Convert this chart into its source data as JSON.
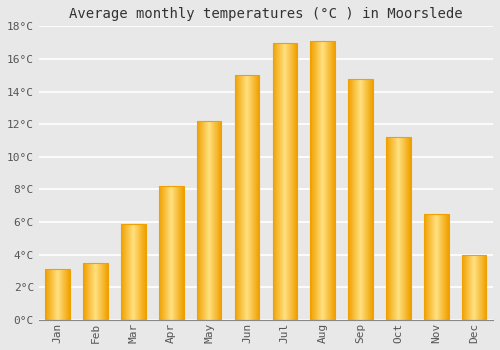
{
  "title": "Average monthly temperatures (°C ) in Moorslede",
  "months": [
    "Jan",
    "Feb",
    "Mar",
    "Apr",
    "May",
    "Jun",
    "Jul",
    "Aug",
    "Sep",
    "Oct",
    "Nov",
    "Dec"
  ],
  "temperatures": [
    3.1,
    3.5,
    5.9,
    8.2,
    12.2,
    15.0,
    17.0,
    17.1,
    14.8,
    11.2,
    6.5,
    4.0
  ],
  "bar_color_center": "#FFE080",
  "bar_color_edge": "#F0A000",
  "ylim": [
    0,
    18
  ],
  "yticks": [
    0,
    2,
    4,
    6,
    8,
    10,
    12,
    14,
    16,
    18
  ],
  "background_color": "#e8e8e8",
  "plot_bg_color": "#e8e8e8",
  "grid_color": "#ffffff",
  "title_fontsize": 10,
  "tick_fontsize": 8,
  "bar_width": 0.65
}
